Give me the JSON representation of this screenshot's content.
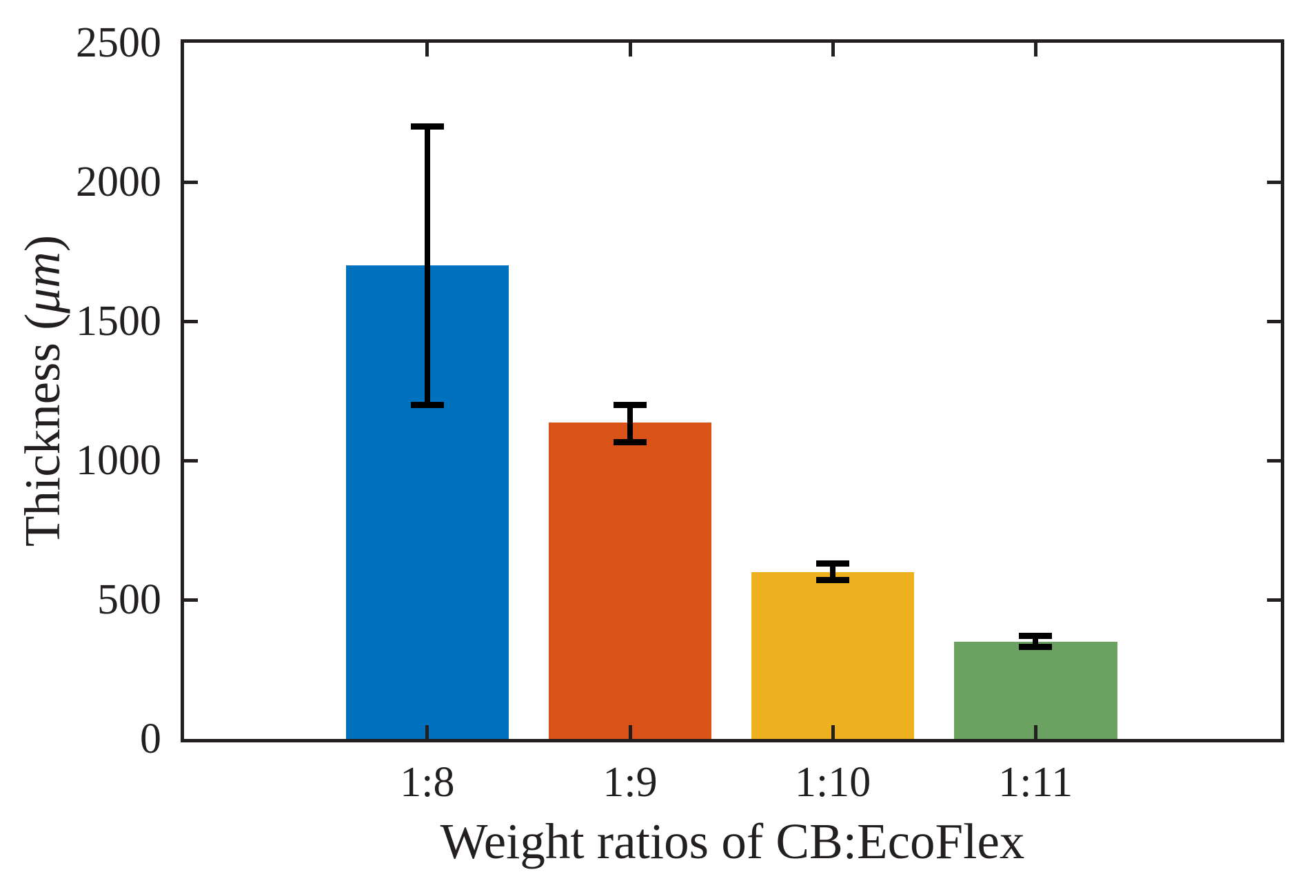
{
  "chart_data": {
    "type": "bar",
    "title": "",
    "categories": [
      "1:8",
      "1:9",
      "1:10",
      "1:11"
    ],
    "values": [
      1700,
      1135,
      600,
      350
    ],
    "error_high": [
      2200,
      1200,
      630,
      370
    ],
    "error_low": [
      1200,
      1065,
      570,
      330
    ],
    "bar_colors": [
      "#0072BD",
      "#D95319",
      "#EDB120",
      "#6BA161"
    ],
    "xlabel": "Weight ratios of CB:EcoFlex",
    "ylabel": "Thickness (μm)",
    "ylabel_parts": {
      "prefix": "Thickness (",
      "unit": "μm",
      "suffix": ")"
    },
    "yticks": [
      0,
      500,
      1000,
      1500,
      2000,
      2500
    ],
    "ylim": [
      0,
      2500
    ],
    "grid": false,
    "legend": "none",
    "axis_color": "#231f20",
    "error_bar_color": "#000000",
    "background_color": "#ffffff"
  }
}
